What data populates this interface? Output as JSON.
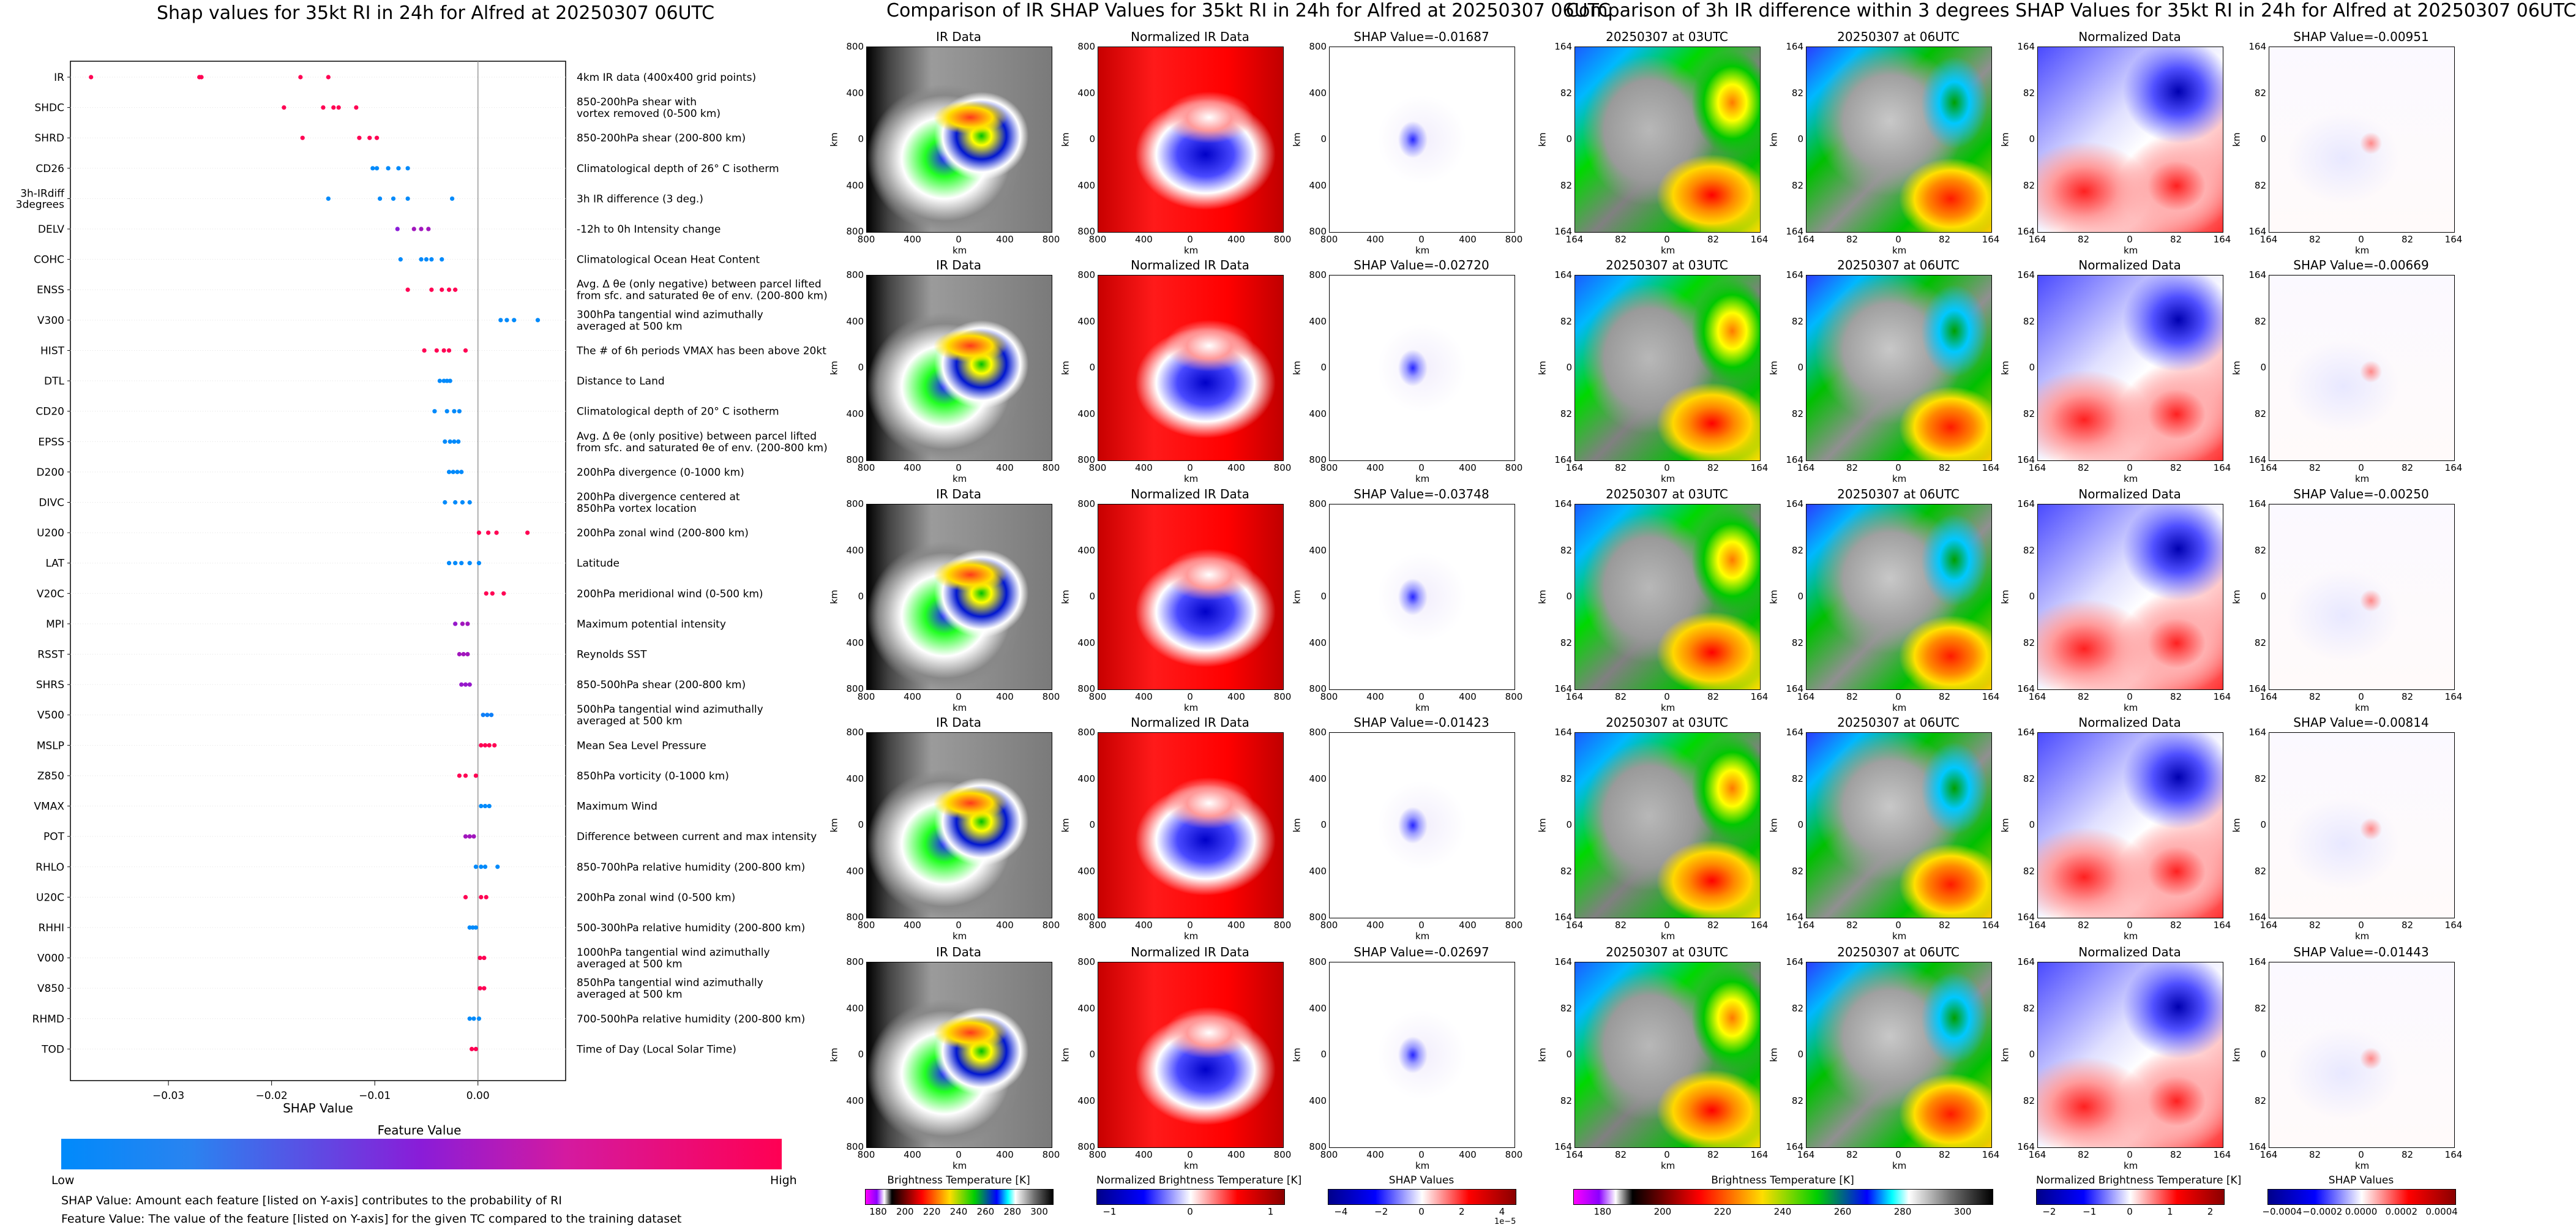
{
  "colors": {
    "feature_low": "#008afb",
    "feature_mid": "#8a1cd8",
    "feature_high": "#ff0053",
    "zero_line": "#999999"
  },
  "left_panel": {
    "title": "Shap values for 35kt RI in 24h for Alfred at 20250307 06UTC",
    "colorbar": {
      "title": "Feature Value",
      "low": "Low",
      "high": "High"
    },
    "footnotes": [
      "SHAP Value: Amount each feature [listed on Y-axis] contributes to the probability of RI",
      "Feature Value: The value of the feature [listed on Y-axis] for the given TC compared to the training dataset"
    ]
  },
  "chart_data": [
    {
      "type": "scatter",
      "title": "Shap values for 35kt RI in 24h for Alfred at 20250307 06UTC",
      "xlabel": "SHAP Value",
      "xlim": [
        -0.0395,
        0.0085
      ],
      "xticks": [
        -0.03,
        -0.02,
        -0.01,
        0.0
      ],
      "xtick_labels": [
        "−0.03",
        "−0.02",
        "−0.01",
        "0.00"
      ],
      "legend": "bottom colorbar (Feature Value Low → High)",
      "features": [
        {
          "name": "IR",
          "desc": "4km IR data (400x400 grid points)",
          "points": [
            [
              -0.0375,
              1.0
            ],
            [
              -0.027,
              1.0
            ],
            [
              -0.0268,
              1.0
            ],
            [
              -0.0172,
              1.0
            ],
            [
              -0.0145,
              1.0
            ]
          ]
        },
        {
          "name": "SHDC",
          "desc": "850-200hPa shear with\nvortex removed (0-500 km)",
          "points": [
            [
              -0.0188,
              1.0
            ],
            [
              -0.015,
              1.0
            ],
            [
              -0.014,
              1.0
            ],
            [
              -0.0135,
              1.0
            ],
            [
              -0.0118,
              1.0
            ]
          ]
        },
        {
          "name": "SHRD",
          "desc": "850-200hPa shear (200-800 km)",
          "points": [
            [
              -0.017,
              1.0
            ],
            [
              -0.0115,
              1.0
            ],
            [
              -0.0105,
              1.0
            ],
            [
              -0.0098,
              1.0
            ]
          ]
        },
        {
          "name": "CD26",
          "desc": "Climatological depth of 26° C isotherm",
          "points": [
            [
              -0.0102,
              0.0
            ],
            [
              -0.0098,
              0.0
            ],
            [
              -0.0087,
              0.0
            ],
            [
              -0.0077,
              0.0
            ],
            [
              -0.0068,
              0.0
            ]
          ]
        },
        {
          "name": "3h-IRdiff\n3degrees",
          "desc": "3h IR difference (3 deg.)",
          "points": [
            [
              -0.0145,
              0.0
            ],
            [
              -0.0095,
              0.0
            ],
            [
              -0.0082,
              0.0
            ],
            [
              -0.0068,
              0.0
            ],
            [
              -0.0025,
              0.0
            ]
          ]
        },
        {
          "name": "DELV",
          "desc": "-12h to 0h Intensity change",
          "points": [
            [
              -0.0078,
              0.5
            ],
            [
              -0.0062,
              0.6
            ],
            [
              -0.0055,
              0.6
            ],
            [
              -0.0048,
              0.6
            ]
          ]
        },
        {
          "name": "COHC",
          "desc": "Climatological Ocean Heat Content",
          "points": [
            [
              -0.0075,
              0.0
            ],
            [
              -0.0055,
              0.0
            ],
            [
              -0.005,
              0.0
            ],
            [
              -0.0045,
              0.0
            ],
            [
              -0.0035,
              0.0
            ]
          ]
        },
        {
          "name": "ENSS",
          "desc": "Avg. Δ θe (only negative) between parcel lifted\nfrom sfc. and saturated θe of env. (200-800 km)",
          "points": [
            [
              -0.0068,
              1.0
            ],
            [
              -0.0045,
              1.0
            ],
            [
              -0.0035,
              1.0
            ],
            [
              -0.0028,
              1.0
            ],
            [
              -0.0022,
              1.0
            ]
          ]
        },
        {
          "name": "V300",
          "desc": "300hPa tangential wind azimuthally\naveraged at 500 km",
          "points": [
            [
              0.0022,
              0.0
            ],
            [
              0.0028,
              0.0
            ],
            [
              0.0035,
              0.0
            ],
            [
              0.0058,
              0.0
            ]
          ]
        },
        {
          "name": "HIST",
          "desc": "The # of 6h periods VMAX has been above 20kt",
          "points": [
            [
              -0.0052,
              1.0
            ],
            [
              -0.004,
              1.0
            ],
            [
              -0.0033,
              1.0
            ],
            [
              -0.0028,
              1.0
            ],
            [
              -0.0012,
              1.0
            ]
          ]
        },
        {
          "name": "DTL",
          "desc": "Distance to Land",
          "points": [
            [
              -0.0037,
              0.0
            ],
            [
              -0.0033,
              0.0
            ],
            [
              -0.003,
              0.0
            ],
            [
              -0.0027,
              0.0
            ]
          ]
        },
        {
          "name": "CD20",
          "desc": "Climatological depth of 20° C isotherm",
          "points": [
            [
              -0.0042,
              0.0
            ],
            [
              -0.003,
              0.0
            ],
            [
              -0.0023,
              0.0
            ],
            [
              -0.0018,
              0.0
            ]
          ]
        },
        {
          "name": "EPSS",
          "desc": "Avg. Δ θe (only positive) between parcel lifted\nfrom sfc. and saturated θe of env. (200-800 km)",
          "points": [
            [
              -0.0032,
              0.0
            ],
            [
              -0.0027,
              0.0
            ],
            [
              -0.0023,
              0.0
            ],
            [
              -0.0019,
              0.0
            ]
          ]
        },
        {
          "name": "D200",
          "desc": "200hPa divergence (0-1000 km)",
          "points": [
            [
              -0.0028,
              0.0
            ],
            [
              -0.0024,
              0.0
            ],
            [
              -0.002,
              0.0
            ],
            [
              -0.0016,
              0.0
            ]
          ]
        },
        {
          "name": "DIVC",
          "desc": "200hPa divergence centered at\n850hPa vortex location",
          "points": [
            [
              -0.0032,
              0.0
            ],
            [
              -0.0022,
              0.0
            ],
            [
              -0.0015,
              0.0
            ],
            [
              -0.0008,
              0.0
            ]
          ]
        },
        {
          "name": "U200",
          "desc": "200hPa zonal wind (200-800 km)",
          "points": [
            [
              0.0001,
              1.0
            ],
            [
              0.001,
              1.0
            ],
            [
              0.0018,
              1.0
            ],
            [
              0.0048,
              1.0
            ]
          ]
        },
        {
          "name": "LAT",
          "desc": "Latitude",
          "points": [
            [
              -0.0028,
              0.0
            ],
            [
              -0.0022,
              0.0
            ],
            [
              -0.0016,
              0.0
            ],
            [
              -0.0008,
              0.0
            ],
            [
              0.0001,
              0.0
            ]
          ]
        },
        {
          "name": "V20C",
          "desc": "200hPa meridional wind (0-500 km)",
          "points": [
            [
              0.0008,
              1.0
            ],
            [
              0.0014,
              1.0
            ],
            [
              0.0025,
              1.0
            ]
          ]
        },
        {
          "name": "MPI",
          "desc": "Maximum potential intensity",
          "points": [
            [
              -0.0022,
              0.55
            ],
            [
              -0.0015,
              0.6
            ],
            [
              -0.001,
              0.6
            ]
          ]
        },
        {
          "name": "RSST",
          "desc": "Reynolds SST",
          "points": [
            [
              -0.0018,
              0.6
            ],
            [
              -0.0014,
              0.6
            ],
            [
              -0.001,
              0.6
            ]
          ]
        },
        {
          "name": "SHRS",
          "desc": "850-500hPa shear (200-800 km)",
          "points": [
            [
              -0.0016,
              0.55
            ],
            [
              -0.0012,
              0.55
            ],
            [
              -0.0008,
              0.55
            ]
          ]
        },
        {
          "name": "V500",
          "desc": "500hPa tangential wind azimuthally\naveraged at 500 km",
          "points": [
            [
              0.0005,
              0.05
            ],
            [
              0.0009,
              0.05
            ],
            [
              0.0013,
              0.05
            ]
          ]
        },
        {
          "name": "MSLP",
          "desc": "Mean Sea Level Pressure",
          "points": [
            [
              0.0003,
              1.0
            ],
            [
              0.0007,
              1.0
            ],
            [
              0.0011,
              1.0
            ],
            [
              0.0016,
              1.0
            ]
          ]
        },
        {
          "name": "Z850",
          "desc": "850hPa vorticity (0-1000 km)",
          "points": [
            [
              -0.0018,
              1.0
            ],
            [
              -0.0012,
              1.0
            ],
            [
              -0.0002,
              1.0
            ]
          ]
        },
        {
          "name": "VMAX",
          "desc": "Maximum Wind",
          "points": [
            [
              0.0003,
              0.0
            ],
            [
              0.0007,
              0.0
            ],
            [
              0.0011,
              0.0
            ]
          ]
        },
        {
          "name": "POT",
          "desc": "Difference between current and max intensity",
          "points": [
            [
              -0.0012,
              0.6
            ],
            [
              -0.0008,
              0.6
            ],
            [
              -0.0004,
              0.6
            ]
          ]
        },
        {
          "name": "RHLO",
          "desc": "850-700hPa relative humidity (200-800 km)",
          "points": [
            [
              -0.0002,
              0.0
            ],
            [
              0.0003,
              0.0
            ],
            [
              0.0007,
              0.0
            ],
            [
              0.0019,
              0.0
            ]
          ]
        },
        {
          "name": "U20C",
          "desc": "200hPa zonal wind (0-500 km)",
          "points": [
            [
              -0.0012,
              1.0
            ],
            [
              0.0003,
              1.0
            ],
            [
              0.0008,
              1.0
            ]
          ]
        },
        {
          "name": "RHHI",
          "desc": "500-300hPa relative humidity (200-800 km)",
          "points": [
            [
              -0.0008,
              0.0
            ],
            [
              -0.0005,
              0.0
            ],
            [
              -0.0002,
              0.0
            ]
          ]
        },
        {
          "name": "V000",
          "desc": "1000hPa tangential wind azimuthally\naveraged at 500 km",
          "points": [
            [
              0.0002,
              1.0
            ],
            [
              0.0006,
              1.0
            ]
          ]
        },
        {
          "name": "V850",
          "desc": "850hPa tangential wind azimuthally\naveraged at 500 km",
          "points": [
            [
              0.0002,
              1.0
            ],
            [
              0.0006,
              1.0
            ]
          ]
        },
        {
          "name": "RHMD",
          "desc": "700-500hPa relative humidity (200-800 km)",
          "points": [
            [
              -0.0008,
              0.0
            ],
            [
              -0.0004,
              0.0
            ],
            [
              0.0001,
              0.0
            ]
          ]
        },
        {
          "name": "TOD",
          "desc": "Time of Day (Local Solar Time)",
          "points": [
            [
              -0.0006,
              1.0
            ],
            [
              -0.0002,
              1.0
            ]
          ]
        }
      ]
    },
    {
      "type": "heatmap",
      "title": "Comparison of IR SHAP Values for 35kt RI in 24h for Alfred at 20250307 06UTC",
      "columns": [
        "IR Data",
        "Normalized IR Data"
      ],
      "shap_values": [
        "-0.01687",
        "-0.02720",
        "-0.03748",
        "-0.01423",
        "-0.02697"
      ],
      "xlabel": "km",
      "ylabel": "km",
      "xtick_labels": [
        "800",
        "400",
        "0",
        "400",
        "800"
      ],
      "ytick_labels": [
        "800",
        "400",
        "0",
        "400",
        "800"
      ],
      "colorbars": [
        {
          "label": "Brightness Temperature [K]",
          "ticks": [
            "180",
            "200",
            "220",
            "240",
            "260",
            "280",
            "300"
          ]
        },
        {
          "label": "Normalized Brightness Temperature [K]",
          "ticks": [
            "−1",
            "0",
            "1"
          ]
        },
        {
          "label": "SHAP Values",
          "ticks": [
            "−4",
            "−2",
            "0",
            "2",
            "4"
          ],
          "multiplier": "1e−5"
        }
      ]
    },
    {
      "type": "heatmap",
      "title": "Comparison of 3h IR difference within 3 degrees SHAP Values for 35kt RI in 24h for Alfred at 20250307 06UTC",
      "columns": [
        "20250307 at 03UTC",
        "20250307 at 06UTC",
        "Normalized Data"
      ],
      "shap_values": [
        "-0.00951",
        "-0.00669",
        "-0.00250",
        "-0.00814",
        "-0.01443"
      ],
      "xlabel": "km",
      "ylabel": "km",
      "xtick_labels": [
        "164",
        "82",
        "0",
        "82",
        "164"
      ],
      "ytick_labels": [
        "164",
        "82",
        "0",
        "82",
        "164"
      ],
      "colorbars": [
        {
          "label": "Brightness Temperature [K]",
          "ticks": [
            "180",
            "200",
            "220",
            "240",
            "260",
            "280",
            "300"
          ]
        },
        {
          "label": "Normalized Brightness Temperature [K]",
          "ticks": [
            "−2",
            "−1",
            "0",
            "1",
            "2"
          ]
        },
        {
          "label": "SHAP Values",
          "ticks": [
            "−0.0004",
            "−0.0002",
            "0.0000",
            "0.0002",
            "0.0004"
          ]
        }
      ]
    }
  ],
  "grid_labels": {
    "shap_prefix": "SHAP Value="
  }
}
